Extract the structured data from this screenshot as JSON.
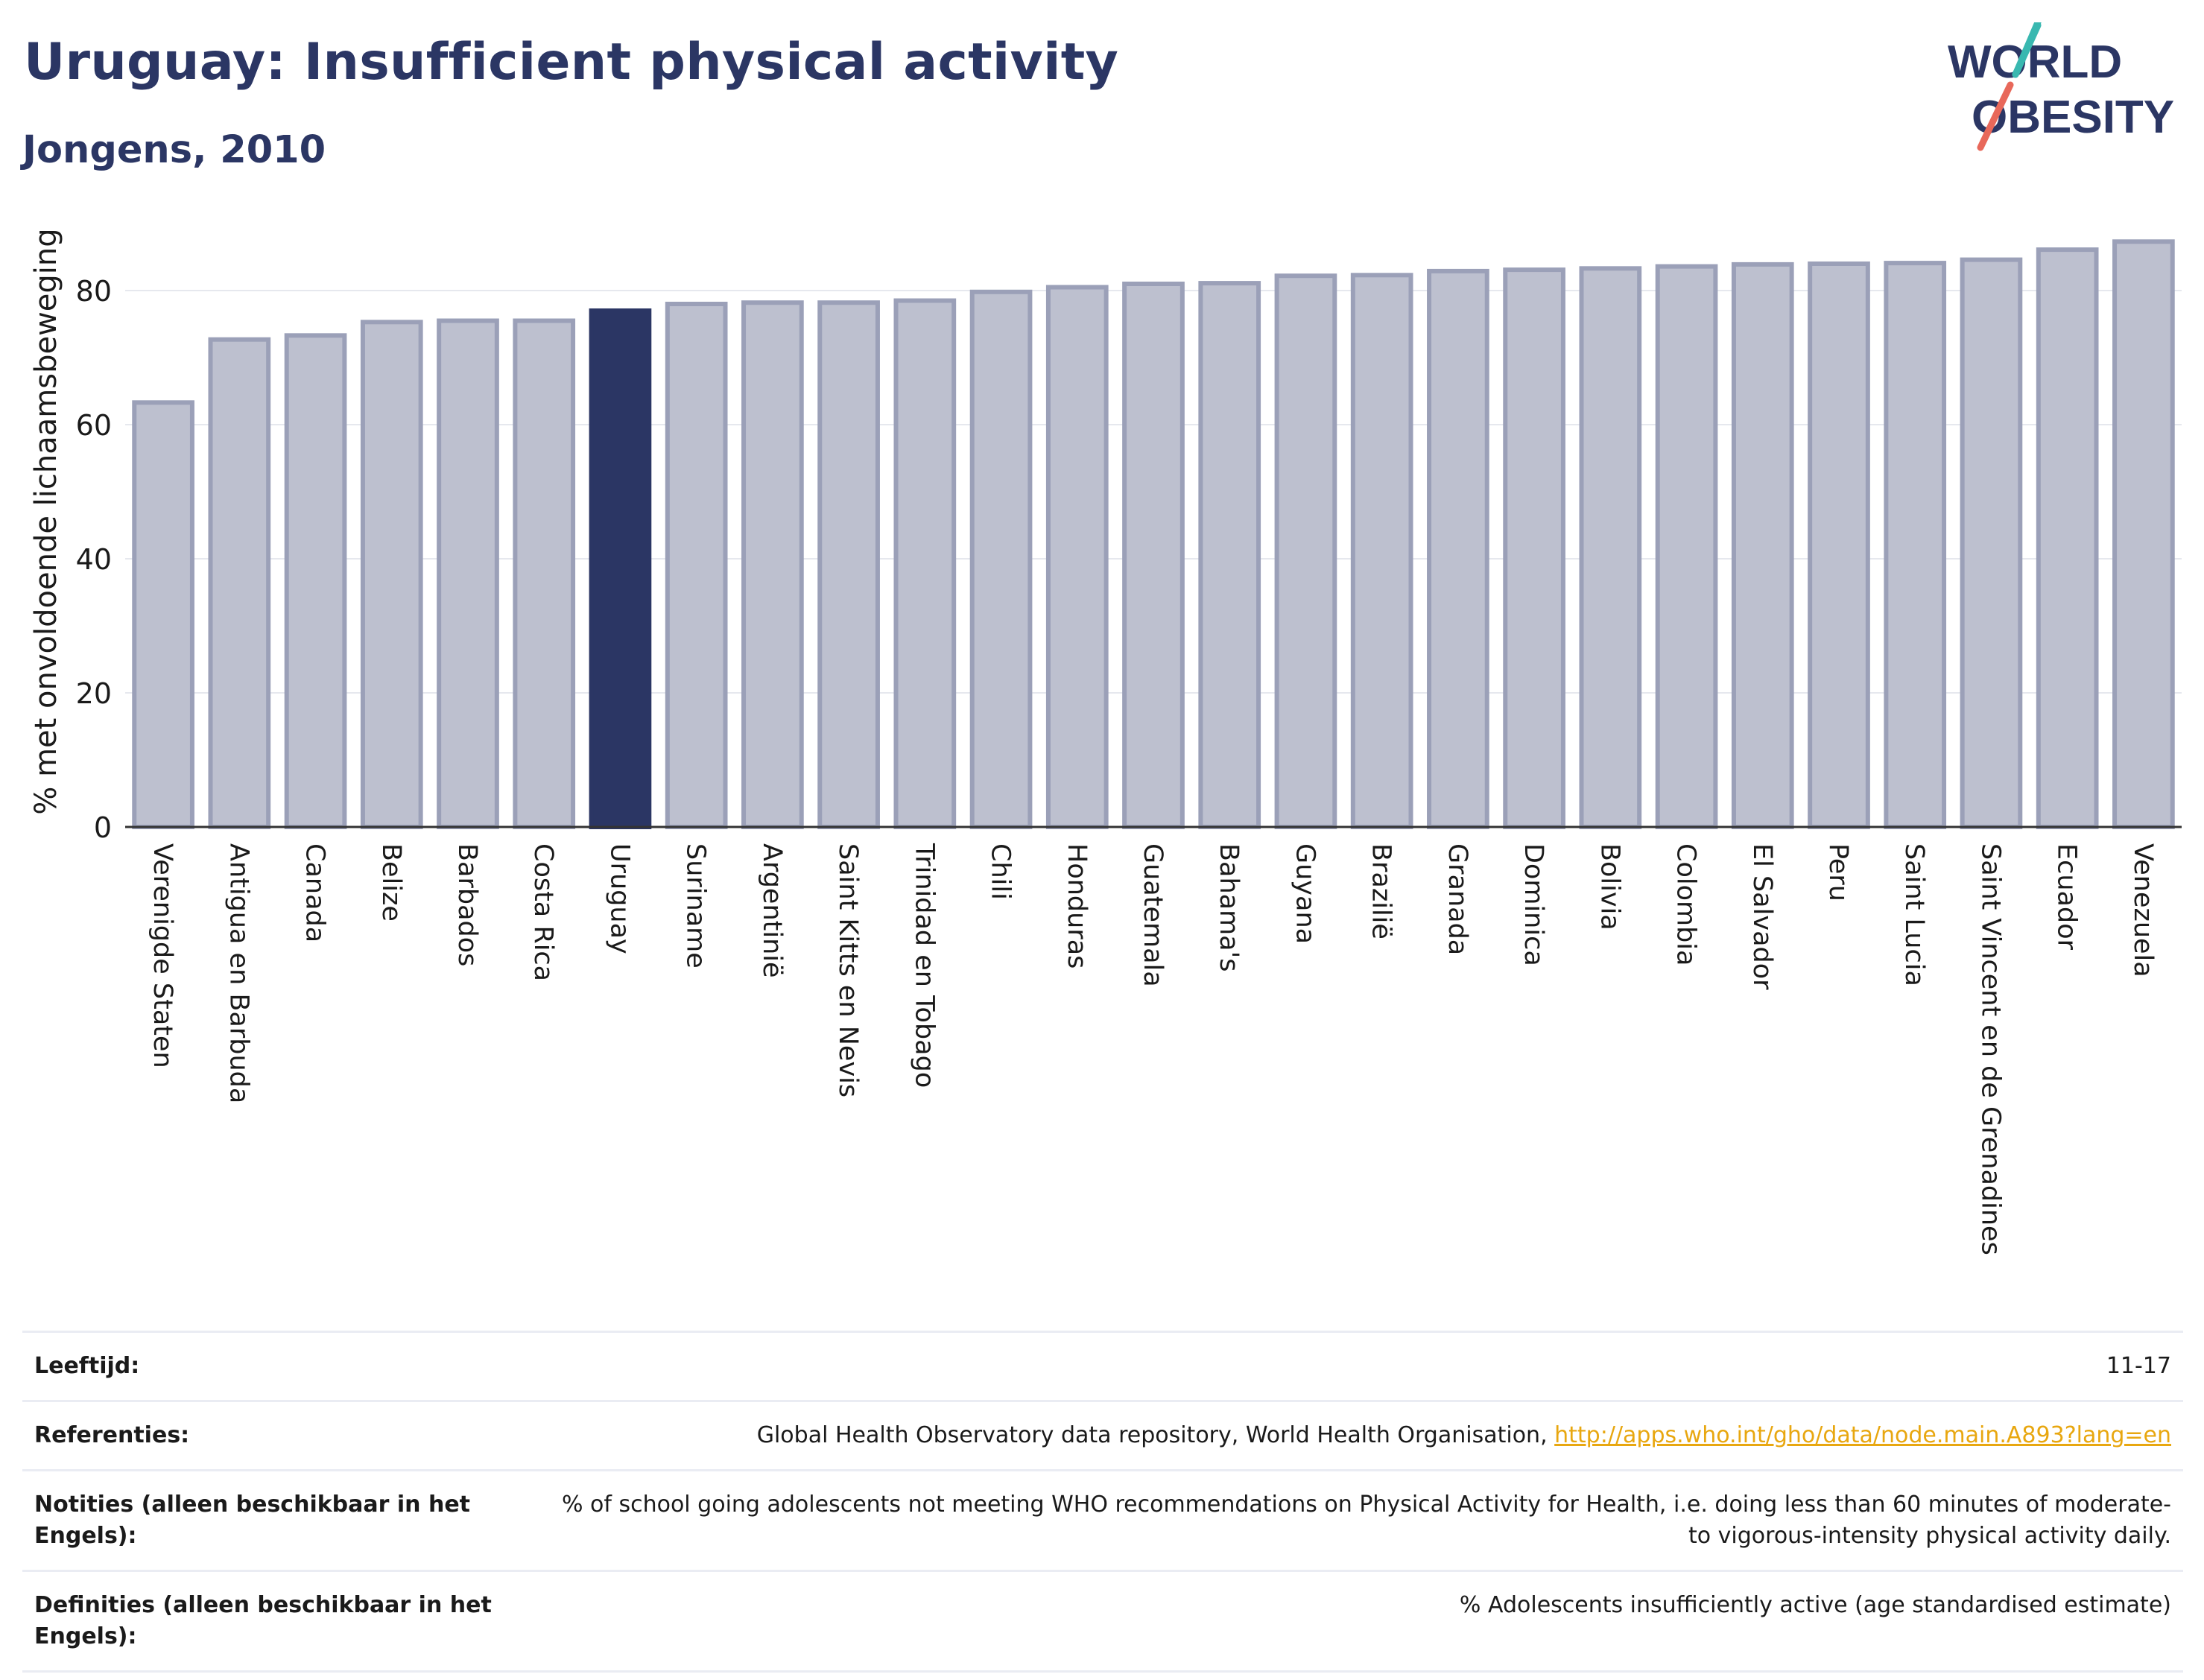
{
  "title": "Uruguay: Insufficient physical activity",
  "subtitle": "Jongens, 2010",
  "logo": {
    "line1": "WORLD",
    "line2": "OBESITY"
  },
  "chart_data": {
    "type": "bar",
    "ylabel": "% met onvoldoende lichaamsbeweging",
    "ylim": [
      0,
      90
    ],
    "yticks": [
      0,
      20,
      40,
      60,
      80
    ],
    "grid": true,
    "highlight": "Uruguay",
    "colors": {
      "bar": "#bdc0cf",
      "bar_edge": "#9ba0b8",
      "highlight": "#2b3664",
      "axis": "#333333",
      "grid": "#e6e8ee"
    },
    "categories": [
      "Verenigde Staten",
      "Antigua en Barbuda",
      "Canada",
      "Belize",
      "Barbados",
      "Costa Rica",
      "Uruguay",
      "Suriname",
      "Argentinië",
      "Saint Kitts en Nevis",
      "Trinidad en Tobago",
      "Chili",
      "Honduras",
      "Guatemala",
      "Bahama's",
      "Guyana",
      "Brazilië",
      "Granada",
      "Dominica",
      "Bolivia",
      "Colombia",
      "El Salvador",
      "Peru",
      "Saint Lucia",
      "Saint Vincent en de Grenadines",
      "Ecuador",
      "Venezuela"
    ],
    "values": [
      63.3,
      72.7,
      73.3,
      75.3,
      75.5,
      75.5,
      77.0,
      78.0,
      78.2,
      78.2,
      78.5,
      79.8,
      80.5,
      81.0,
      81.1,
      82.2,
      82.3,
      82.9,
      83.1,
      83.3,
      83.6,
      83.9,
      84.0,
      84.1,
      84.6,
      86.1,
      87.3
    ]
  },
  "meta": [
    {
      "key": "Leeftijd:",
      "value": "11-17"
    },
    {
      "key": "Referenties:",
      "value": "Global Health Observatory data repository, World Health Organisation, ",
      "link": "http://apps.who.int/gho/data/node.main.A893?lang=en"
    },
    {
      "key": "Notities (alleen beschikbaar in het Engels):",
      "value": "% of school going adolescents not meeting WHO recommendations on Physical Activity for Health, i.e. doing less than 60 minutes of moderate- to vigorous-intensity physical activity daily."
    },
    {
      "key": "Definities (alleen beschikbaar in het Engels):",
      "value": "% Adolescents insufficiently active (age standardised estimate)"
    }
  ]
}
